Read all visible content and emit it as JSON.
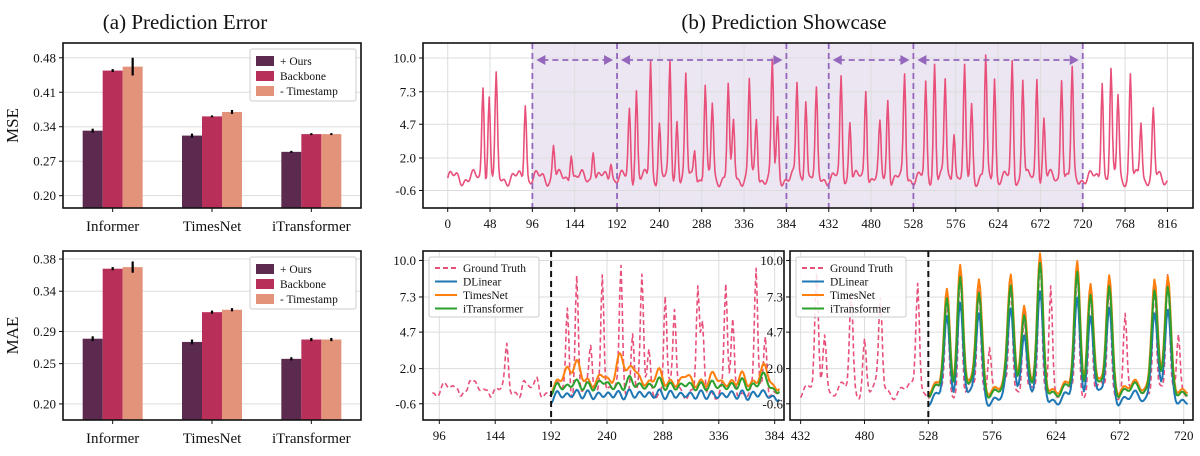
{
  "titles": {
    "left": "(a) Prediction Error",
    "right": "(b) Prediction Showcase"
  },
  "colors": {
    "ours": "#5b2a4e",
    "backbone": "#b8305a",
    "timestamp": "#e3937a",
    "ground_truth": "#e8507a",
    "dlinear": "#1f77b4",
    "timesnet": "#ff7f0e",
    "itransformer": "#2ca02c",
    "arrow": "#9467bd",
    "shade": "#ece6f3"
  },
  "chart_data": [
    {
      "id": "mse-bars",
      "type": "bar",
      "ylabel": "MSE",
      "categories": [
        "Informer",
        "TimesNet",
        "iTransformer"
      ],
      "legend": [
        "+ Ours",
        "Backbone",
        "- Timestamp"
      ],
      "legend_position": "top-right",
      "series": [
        {
          "name": "+ Ours",
          "values": [
            0.332,
            0.322,
            0.289
          ],
          "err": [
            0.004,
            0.004,
            0.002
          ]
        },
        {
          "name": "Backbone",
          "values": [
            0.454,
            0.361,
            0.325
          ],
          "err": [
            0.003,
            0.002,
            0.002
          ]
        },
        {
          "name": "- Timestamp",
          "values": [
            0.462,
            0.37,
            0.325
          ],
          "err": [
            0.018,
            0.004,
            0.002
          ]
        }
      ],
      "yticks": [
        "0.20",
        "0.27",
        "0.34",
        "0.41",
        "0.48"
      ],
      "ylim": [
        0.175,
        0.51
      ],
      "grid": true
    },
    {
      "id": "mae-bars",
      "type": "bar",
      "ylabel": "MAE",
      "categories": [
        "Informer",
        "TimesNet",
        "iTransformer"
      ],
      "legend": [
        "+ Ours",
        "Backbone",
        "- Timestamp"
      ],
      "legend_position": "top-right",
      "series": [
        {
          "name": "+ Ours",
          "values": [
            0.281,
            0.277,
            0.256
          ],
          "err": [
            0.003,
            0.003,
            0.002
          ]
        },
        {
          "name": "Backbone",
          "values": [
            0.368,
            0.314,
            0.28
          ],
          "err": [
            0.002,
            0.002,
            0.002
          ]
        },
        {
          "name": "- Timestamp",
          "values": [
            0.37,
            0.317,
            0.28
          ],
          "err": [
            0.007,
            0.002,
            0.002
          ]
        }
      ],
      "yticks": [
        "0.20",
        "0.25",
        "0.29",
        "0.34",
        "0.38"
      ],
      "ylim": [
        0.18,
        0.39
      ],
      "grid": true
    },
    {
      "id": "showcase-top",
      "type": "line",
      "xlim": [
        -28,
        845
      ],
      "ylim": [
        -2.0,
        11.2
      ],
      "xticks": [
        "0",
        "48",
        "96",
        "144",
        "192",
        "240",
        "288",
        "336",
        "384",
        "432",
        "480",
        "528",
        "576",
        "624",
        "672",
        "720",
        "768",
        "816"
      ],
      "yticks": [
        "-0.6",
        "2.0",
        "4.7",
        "7.3",
        "10.0"
      ],
      "shaded_range": [
        96,
        720
      ],
      "windows": [
        [
          96,
          192
        ],
        [
          192,
          384
        ],
        [
          432,
          528
        ],
        [
          528,
          720
        ]
      ],
      "series": [
        {
          "name": "",
          "peaks": [
            [
              40,
              8.0
            ],
            [
              47,
              6.8
            ],
            [
              55,
              8.2
            ],
            [
              88,
              6.6
            ],
            [
              120,
              3.2
            ],
            [
              140,
              2.8
            ],
            [
              165,
              3.0
            ],
            [
              185,
              2.0
            ],
            [
              206,
              5.8
            ],
            [
              214,
              7.5
            ],
            [
              230,
              9.8
            ],
            [
              240,
              4.8
            ],
            [
              252,
              9.6
            ],
            [
              260,
              5.2
            ],
            [
              270,
              8.4
            ],
            [
              280,
              3.0
            ],
            [
              292,
              7.6
            ],
            [
              300,
              6.3
            ],
            [
              318,
              7.7
            ],
            [
              324,
              5.0
            ],
            [
              342,
              8.2
            ],
            [
              350,
              5.1
            ],
            [
              368,
              9.6
            ],
            [
              374,
              5.0
            ],
            [
              396,
              8.0
            ],
            [
              406,
              7.1
            ],
            [
              418,
              7.0
            ],
            [
              446,
              8.3
            ],
            [
              456,
              5.2
            ],
            [
              474,
              7.7
            ],
            [
              490,
              4.4
            ],
            [
              499,
              6.8
            ],
            [
              518,
              8.6
            ],
            [
              542,
              7.7
            ],
            [
              552,
              9.7
            ],
            [
              564,
              8.2
            ],
            [
              574,
              4.5
            ],
            [
              586,
              8.8
            ],
            [
              594,
              6.4
            ],
            [
              610,
              9.9
            ],
            [
              620,
              8.6
            ],
            [
              640,
              9.5
            ],
            [
              652,
              8.5
            ],
            [
              668,
              8.6
            ],
            [
              676,
              5.1
            ],
            [
              696,
              8.8
            ],
            [
              708,
              8.9
            ],
            [
              742,
              8.6
            ],
            [
              752,
              8.9
            ],
            [
              760,
              7.1
            ],
            [
              774,
              8.6
            ],
            [
              786,
              5.1
            ],
            [
              800,
              5.6
            ]
          ]
        }
      ]
    },
    {
      "id": "showcase-left",
      "type": "line",
      "xlim": [
        82,
        392
      ],
      "ylim": [
        -1.8,
        10.7
      ],
      "xticks": [
        "96",
        "144",
        "192",
        "240",
        "288",
        "336",
        "384"
      ],
      "yticks": [
        "-0.6",
        "2.0",
        "4.7",
        "7.3",
        "10.0"
      ],
      "forecast_start": 192,
      "legend": [
        "Ground Truth",
        "DLinear",
        "TimesNet",
        "iTransformer"
      ],
      "legend_position": "top-left",
      "series": [
        {
          "name": "Ground Truth",
          "peaks": [
            [
              112,
              1.0
            ],
            [
              122,
              1.2
            ],
            [
              138,
              0.9
            ],
            [
              154,
              3.4
            ],
            [
              168,
              1.2
            ],
            [
              180,
              1.0
            ],
            [
              206,
              6.3
            ],
            [
              214,
              9.0
            ],
            [
              226,
              3.4
            ],
            [
              236,
              9.6
            ],
            [
              252,
              9.4
            ],
            [
              262,
              5.1
            ],
            [
              270,
              8.6
            ],
            [
              276,
              3.0
            ],
            [
              290,
              7.6
            ],
            [
              298,
              6.2
            ],
            [
              318,
              7.8
            ],
            [
              322,
              4.9
            ],
            [
              342,
              8.1
            ],
            [
              348,
              5.2
            ],
            [
              368,
              9.1
            ],
            [
              376,
              4.5
            ]
          ]
        },
        {
          "name": "DLinear",
          "peaks": [
            [
              212,
              0.6
            ],
            [
              236,
              0.5
            ],
            [
              260,
              0.6
            ],
            [
              284,
              0.6
            ],
            [
              308,
              0.5
            ],
            [
              332,
              0.5
            ],
            [
              356,
              0.5
            ],
            [
              378,
              0.4
            ]
          ]
        },
        {
          "name": "TimesNet",
          "peaks": [
            [
              206,
              1.8
            ],
            [
              214,
              2.6
            ],
            [
              236,
              2.0
            ],
            [
              252,
              2.8
            ],
            [
              262,
              2.5
            ],
            [
              284,
              2.2
            ],
            [
              308,
              2.0
            ],
            [
              332,
              2.0
            ],
            [
              356,
              1.9
            ],
            [
              376,
              2.3
            ]
          ]
        },
        {
          "name": "iTransformer",
          "peaks": [
            [
              212,
              1.4
            ],
            [
              236,
              1.5
            ],
            [
              260,
              1.6
            ],
            [
              284,
              1.5
            ],
            [
              308,
              1.3
            ],
            [
              332,
              1.3
            ],
            [
              356,
              1.4
            ],
            [
              376,
              1.6
            ]
          ]
        }
      ]
    },
    {
      "id": "showcase-right",
      "type": "line",
      "xlim": [
        424,
        727
      ],
      "ylim": [
        -1.8,
        10.7
      ],
      "xticks": [
        "432",
        "480",
        "528",
        "576",
        "624",
        "672",
        "720"
      ],
      "yticks": [
        "-0.6",
        "2.0",
        "4.7",
        "7.3",
        "10.0"
      ],
      "forecast_start": 528,
      "legend": [
        "Ground Truth",
        "DLinear",
        "TimesNet",
        "iTransformer"
      ],
      "legend_position": "top-left",
      "series": [
        {
          "name": "Ground Truth",
          "peaks": [
            [
              444,
              8.5
            ],
            [
              450,
              5.0
            ],
            [
              470,
              7.3
            ],
            [
              480,
              4.3
            ],
            [
              492,
              7.0
            ],
            [
              520,
              8.6
            ],
            [
              542,
              7.0
            ],
            [
              552,
              9.6
            ],
            [
              566,
              8.0
            ],
            [
              574,
              4.2
            ],
            [
              590,
              8.6
            ],
            [
              600,
              6.8
            ],
            [
              612,
              9.9
            ],
            [
              620,
              8.4
            ],
            [
              640,
              9.5
            ],
            [
              650,
              8.3
            ],
            [
              664,
              8.5
            ],
            [
              676,
              6.0
            ],
            [
              698,
              8.9
            ],
            [
              708,
              8.6
            ],
            [
              716,
              5.0
            ]
          ]
        },
        {
          "name": "DLinear",
          "peaks": [
            [
              542,
              5.5
            ],
            [
              552,
              7.0
            ],
            [
              566,
              6.0
            ],
            [
              590,
              6.5
            ],
            [
              600,
              5.0
            ],
            [
              612,
              7.2
            ],
            [
              640,
              7.0
            ],
            [
              650,
              6.0
            ],
            [
              664,
              6.4
            ],
            [
              698,
              6.5
            ],
            [
              708,
              6.0
            ]
          ]
        },
        {
          "name": "TimesNet",
          "peaks": [
            [
              542,
              7.5
            ],
            [
              552,
              9.8
            ],
            [
              566,
              8.5
            ],
            [
              590,
              9.0
            ],
            [
              600,
              7.2
            ],
            [
              612,
              10.0
            ],
            [
              640,
              9.7
            ],
            [
              650,
              8.4
            ],
            [
              664,
              8.8
            ],
            [
              698,
              9.0
            ],
            [
              708,
              8.5
            ]
          ]
        },
        {
          "name": "iTransformer",
          "peaks": [
            [
              542,
              6.8
            ],
            [
              552,
              8.9
            ],
            [
              566,
              7.5
            ],
            [
              590,
              8.2
            ],
            [
              600,
              6.5
            ],
            [
              612,
              9.3
            ],
            [
              640,
              8.9
            ],
            [
              650,
              7.6
            ],
            [
              664,
              8.0
            ],
            [
              698,
              8.2
            ],
            [
              708,
              7.7
            ]
          ]
        }
      ]
    }
  ]
}
